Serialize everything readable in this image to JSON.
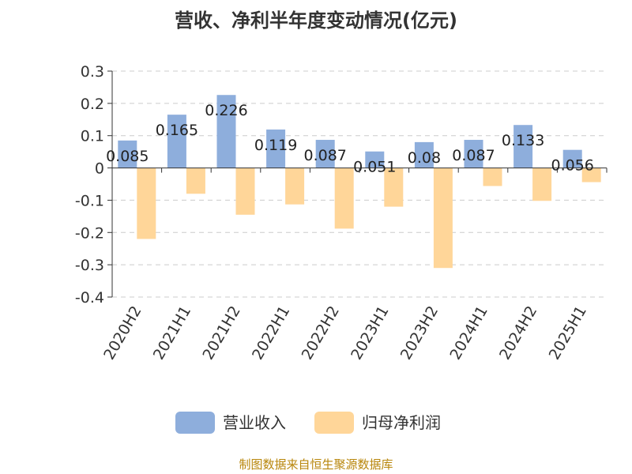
{
  "chart_data": {
    "type": "bar",
    "title": "营收、净利半年度变动情况(亿元)",
    "categories": [
      "2020H2",
      "2021H1",
      "2021H2",
      "2022H1",
      "2022H2",
      "2023H1",
      "2023H2",
      "2024H1",
      "2024H2",
      "2025H1"
    ],
    "series": [
      {
        "name": "营业收入",
        "values": [
          0.085,
          0.165,
          0.226,
          0.119,
          0.087,
          0.051,
          0.08,
          0.087,
          0.133,
          0.056
        ],
        "color": "#8EAEDC"
      },
      {
        "name": "归母净利润",
        "values": [
          -0.22,
          -0.08,
          -0.145,
          -0.113,
          -0.188,
          -0.12,
          -0.31,
          -0.056,
          -0.102,
          -0.044
        ],
        "color": "#FFD699"
      }
    ],
    "data_labels": [
      "0.085",
      "0.165",
      "0.226",
      "0.119",
      "0.087",
      "0.051",
      "0.08",
      "0.087",
      "0.133",
      "0.056"
    ],
    "yticks": [
      "0.3",
      "0.2",
      "0.1",
      "0",
      "-0.1",
      "-0.2",
      "-0.3",
      "-0.4"
    ],
    "ylim": [
      -0.4,
      0.3
    ],
    "grid": true,
    "legend_position": "bottom"
  },
  "source_text": "制图数据来自恒生聚源数据库"
}
